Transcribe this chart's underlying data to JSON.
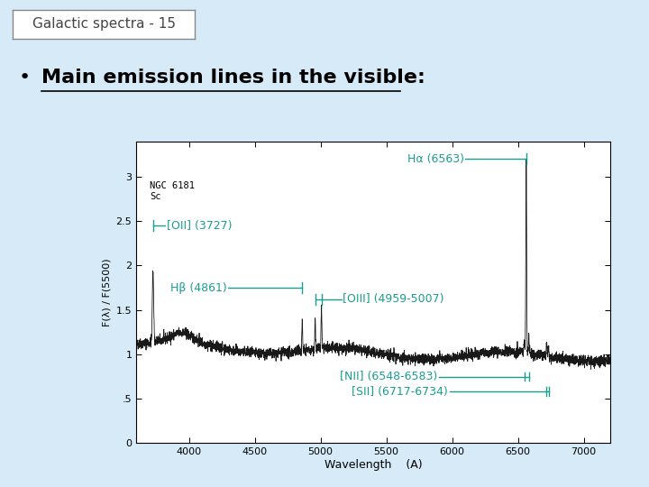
{
  "bg_color": "#d6eaf8",
  "title_box_text": "Galactic spectra - 15",
  "title_box_color": "#ffffff",
  "title_box_edge_color": "#888888",
  "bullet_text": "Main emission lines in the visible:",
  "bullet_fontsize": 16,
  "annotation_color": "#1a9e8f",
  "annotation_fontsize": 9,
  "inner_label_text": "NGC 6181\nSc",
  "xlabel": "Wavelength    (A)",
  "ylabel": "F(λ) / F(5500)",
  "xlim": [
    3600,
    7200
  ],
  "ylim": [
    0,
    3.4
  ],
  "xticks": [
    4000,
    4500,
    5000,
    5500,
    6000,
    6500,
    7000
  ],
  "yticks": [
    0,
    0.5,
    1,
    1.5,
    2,
    2.5,
    3
  ],
  "ytick_labels": [
    "0",
    ".5",
    "1",
    "1.5",
    "2",
    "2.5",
    "3"
  ]
}
